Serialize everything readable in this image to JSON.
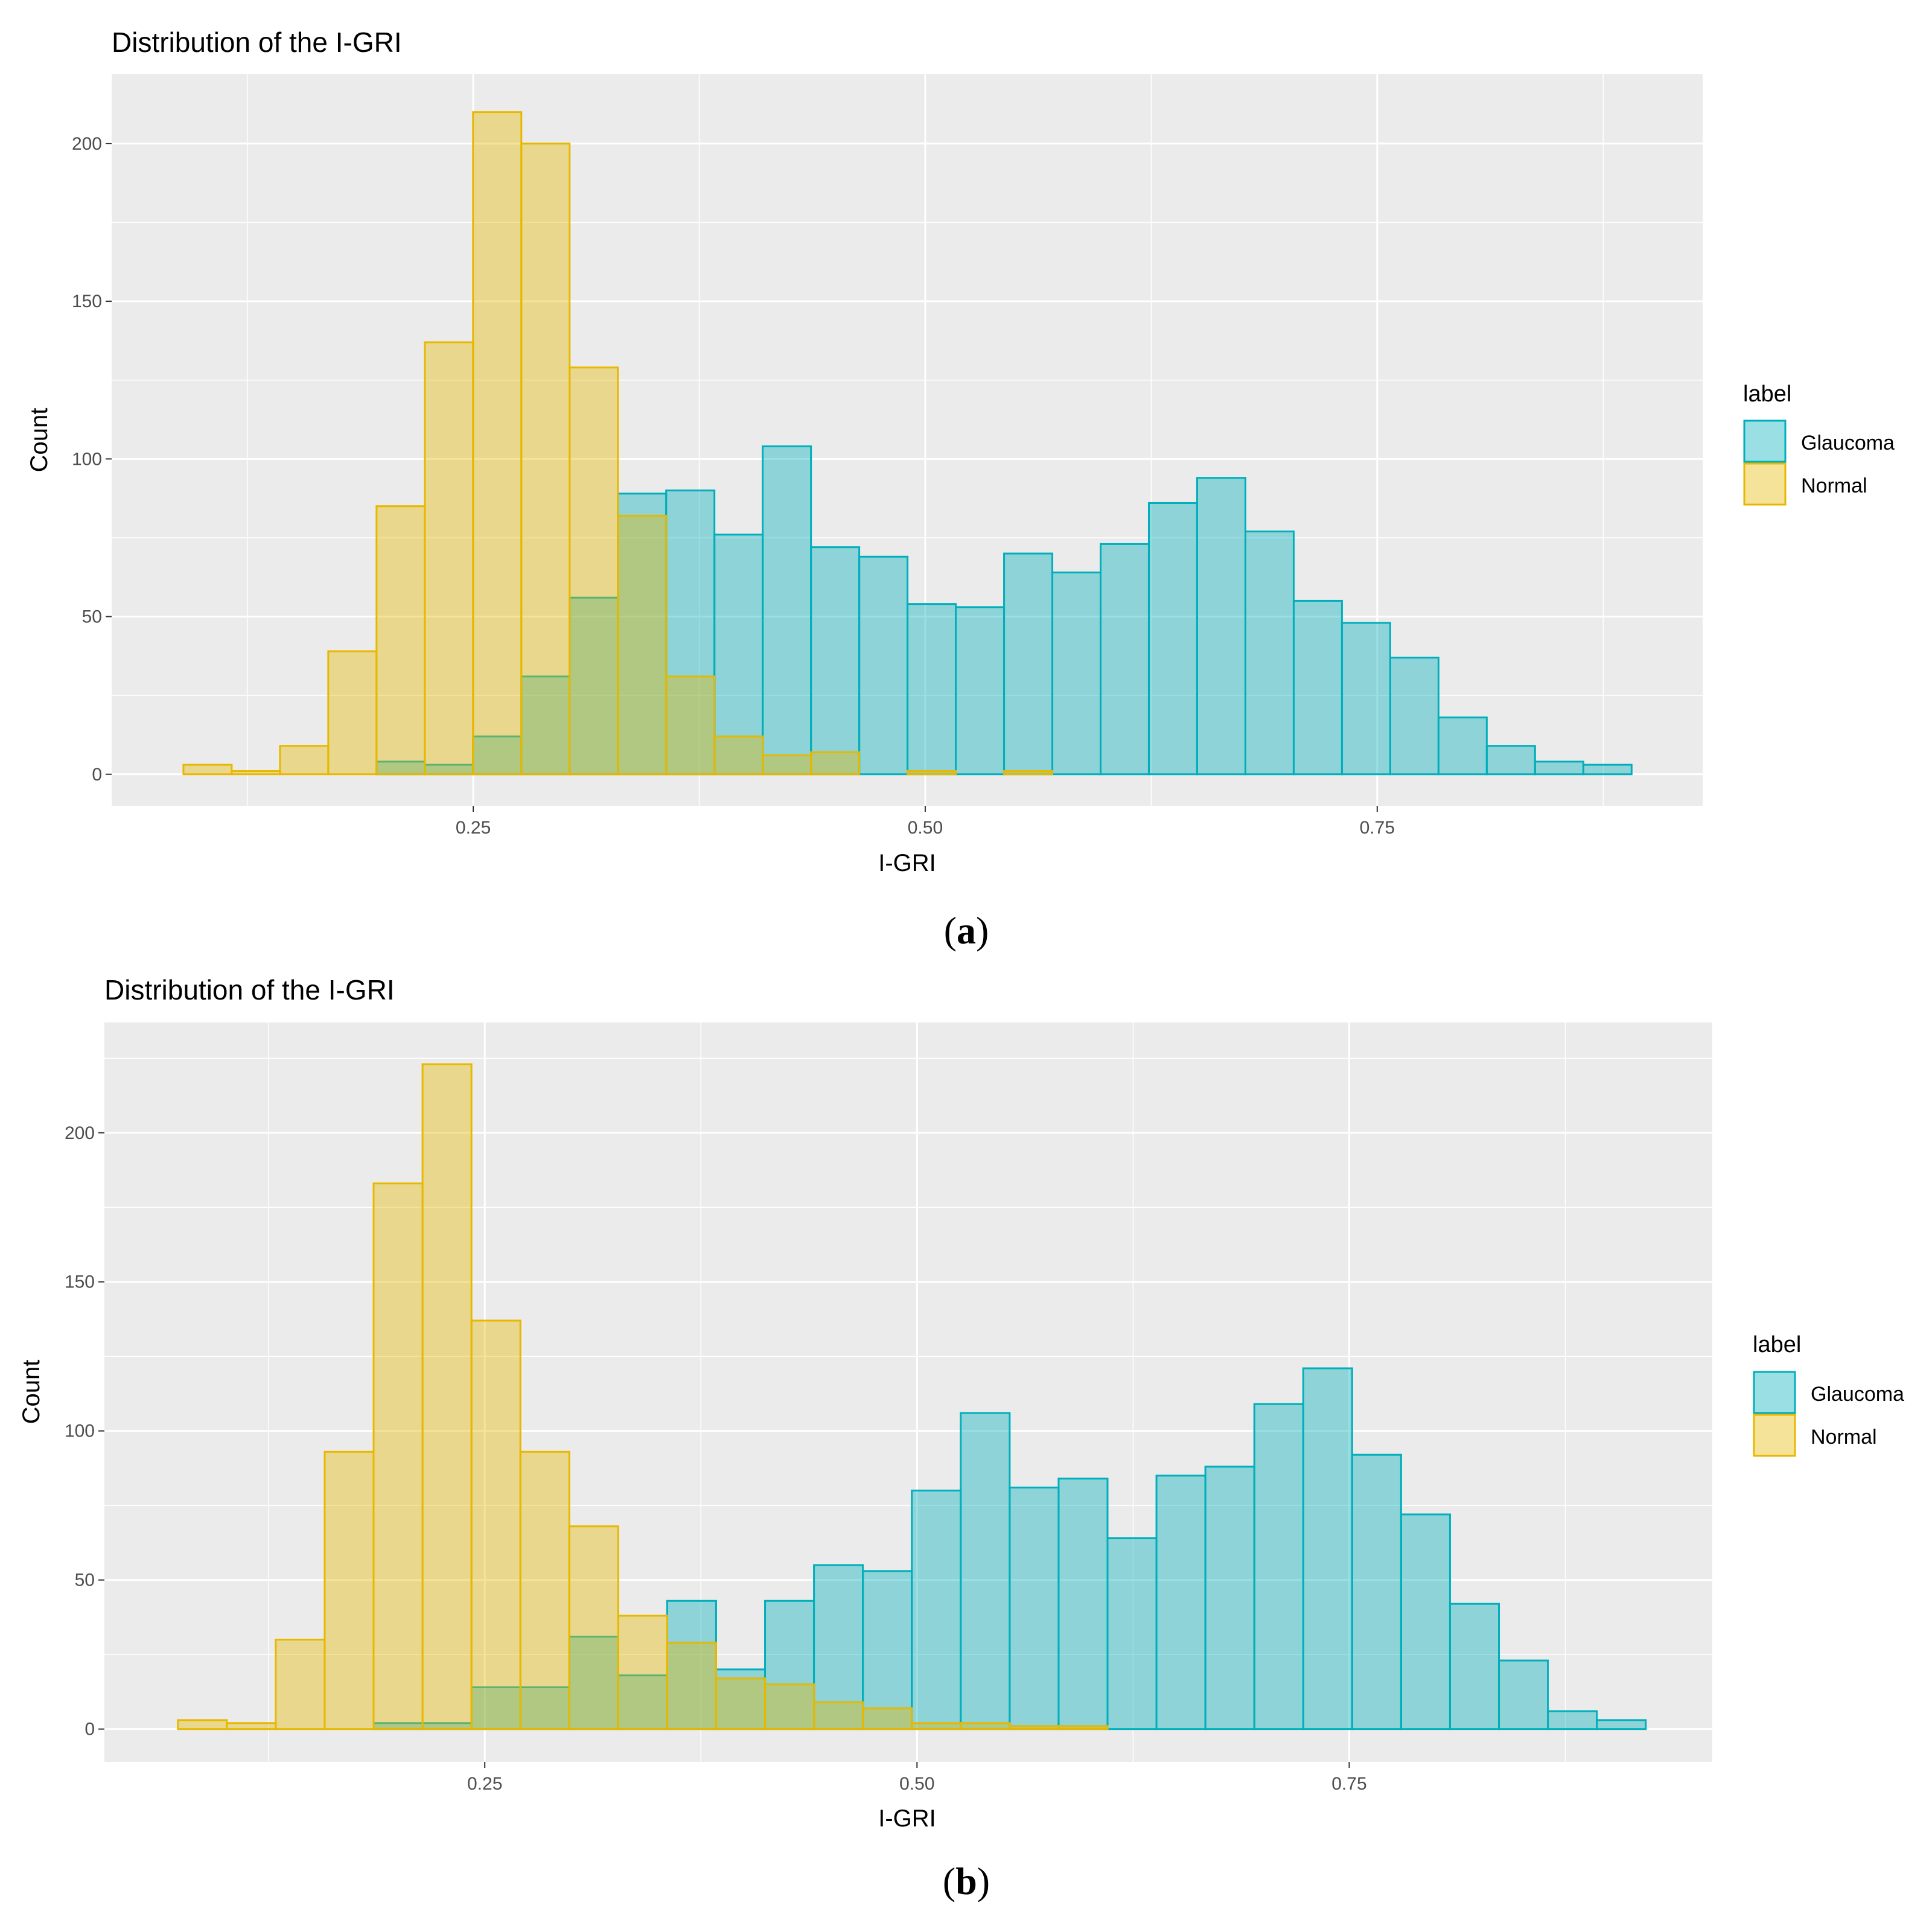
{
  "colors": {
    "glaucoma_fill": "#00AFBB",
    "glaucoma_stroke": "#00AFBB",
    "normal_fill": "#E7B800",
    "normal_stroke": "#E7B800",
    "panel_bg": "#EBEBEB",
    "grid": "#FFFFFF",
    "tick_text": "#4D4D4D"
  },
  "chart_data": [
    {
      "id": "a",
      "type": "bar",
      "subtype": "overlapping-histogram",
      "caption": {
        "open": "(",
        "letter": "a",
        "close": ")"
      },
      "title": "Distribution of the I-GRI",
      "xlabel": "I-GRI",
      "ylabel": "Count",
      "xlim": [
        0.05,
        0.93
      ],
      "ylim": [
        -10,
        222
      ],
      "xticks": [
        0.25,
        0.5,
        0.75
      ],
      "xtick_labels": [
        "0.25",
        "0.50",
        "0.75"
      ],
      "yticks": [
        0,
        50,
        100,
        150,
        200
      ],
      "ytick_labels": [
        "0",
        "50",
        "100",
        "150",
        "200"
      ],
      "grid": true,
      "legend": {
        "title": "label",
        "position": "right",
        "entries": [
          "Glaucoma",
          "Normal"
        ]
      },
      "bins": {
        "start": 0.0897,
        "width": 0.0267,
        "count": 30
      },
      "series": [
        {
          "name": "Glaucoma",
          "values": [
            0,
            0,
            0,
            0,
            4,
            3,
            12,
            31,
            56,
            89,
            90,
            76,
            104,
            72,
            69,
            54,
            53,
            70,
            64,
            73,
            86,
            94,
            77,
            55,
            48,
            37,
            18,
            9,
            4,
            3
          ]
        },
        {
          "name": "Normal",
          "values": [
            3,
            1,
            9,
            39,
            85,
            137,
            210,
            200,
            129,
            82,
            31,
            12,
            6,
            7,
            0,
            1,
            0,
            1,
            0,
            0,
            0,
            0,
            0,
            0,
            0,
            0,
            0,
            0,
            0,
            0
          ]
        }
      ]
    },
    {
      "id": "b",
      "type": "bar",
      "subtype": "overlapping-histogram",
      "caption": {
        "open": "(",
        "letter": "b",
        "close": ")"
      },
      "title": "Distribution of the I-GRI",
      "xlabel": "I-GRI",
      "ylabel": "Count",
      "xlim": [
        0.03,
        0.96
      ],
      "ylim": [
        -11,
        237
      ],
      "xticks": [
        0.25,
        0.5,
        0.75
      ],
      "xtick_labels": [
        "0.25",
        "0.50",
        "0.75"
      ],
      "yticks": [
        0,
        50,
        100,
        150,
        200
      ],
      "ytick_labels": [
        "0",
        "50",
        "100",
        "150",
        "200"
      ],
      "grid": true,
      "legend": {
        "title": "label",
        "position": "right",
        "entries": [
          "Glaucoma",
          "Normal"
        ]
      },
      "bins": {
        "start": 0.0725,
        "width": 0.0283,
        "count": 30
      },
      "series": [
        {
          "name": "Glaucoma",
          "values": [
            0,
            0,
            0,
            0,
            2,
            2,
            14,
            14,
            31,
            18,
            43,
            20,
            43,
            55,
            53,
            80,
            106,
            81,
            84,
            64,
            85,
            88,
            109,
            121,
            92,
            72,
            42,
            23,
            6,
            3
          ]
        },
        {
          "name": "Normal",
          "values": [
            3,
            2,
            30,
            93,
            183,
            223,
            137,
            93,
            68,
            38,
            29,
            17,
            15,
            9,
            7,
            2,
            2,
            1,
            1,
            0,
            0,
            0,
            0,
            0,
            0,
            0,
            0,
            0,
            0,
            0
          ]
        }
      ]
    }
  ]
}
